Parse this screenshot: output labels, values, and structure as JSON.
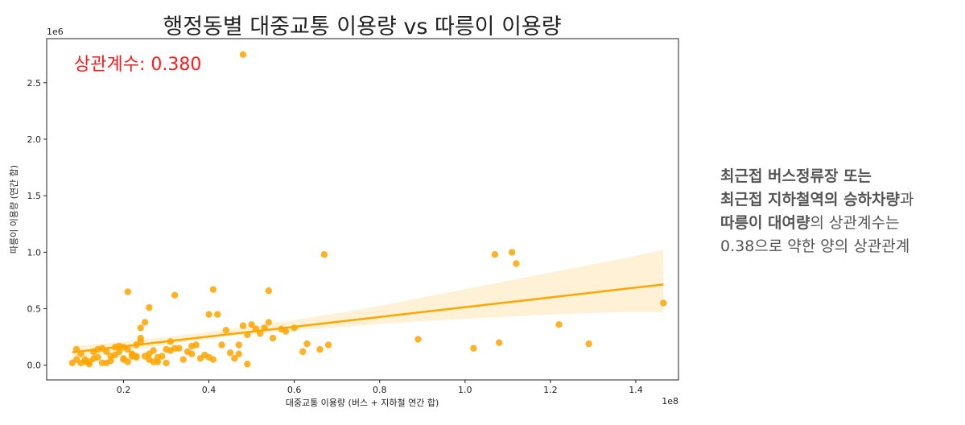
{
  "chart_data": {
    "type": "scatter",
    "title": "행정동별 대중교통 이용량 vs 따릉이 이용량",
    "xlabel": "대중교통 이용량 (버스 + 지하철 연간 합)",
    "ylabel": "따릉이 이용량 (연간 합)",
    "x_offset_label": "1e8",
    "y_offset_label": "1e6",
    "xlim": [
      0.02,
      1.5
    ],
    "ylim": [
      -0.13,
      2.89
    ],
    "xticks": [
      0.2,
      0.4,
      0.6,
      0.8,
      1.0,
      1.2,
      1.4
    ],
    "xtick_labels": [
      "0.2",
      "0.4",
      "0.6",
      "0.8",
      "1.0",
      "1.2",
      "1.4"
    ],
    "yticks": [
      0.0,
      0.5,
      1.0,
      1.5,
      2.0,
      2.5
    ],
    "ytick_labels": [
      "0.0",
      "0.5",
      "1.0",
      "1.5",
      "2.0",
      "2.5"
    ],
    "grid": false,
    "color": "#FFA500",
    "annotation": "상관계수: 0.380",
    "annotation_color": "#FF1A1A",
    "regression": {
      "x": [
        0.08,
        1.465
      ],
      "y": [
        0.115,
        0.715
      ]
    },
    "confidence_band": {
      "x": [
        0.08,
        0.15,
        0.3,
        0.45,
        0.6,
        0.75,
        0.9,
        1.05,
        1.2,
        1.35,
        1.465
      ],
      "lower": [
        0.06,
        0.1,
        0.18,
        0.26,
        0.31,
        0.35,
        0.39,
        0.42,
        0.45,
        0.47,
        0.47
      ],
      "upper": [
        0.17,
        0.19,
        0.25,
        0.32,
        0.4,
        0.49,
        0.6,
        0.71,
        0.82,
        0.93,
        1.02
      ]
    },
    "points": {
      "x": [
        0.48,
        0.21,
        0.41,
        0.32,
        0.54,
        0.67,
        1.07,
        1.11,
        1.12,
        1.08,
        1.02,
        1.22,
        1.29,
        1.465,
        0.89,
        0.1,
        0.11,
        0.13,
        0.15,
        0.17,
        0.19,
        0.2,
        0.21,
        0.22,
        0.23,
        0.24,
        0.25,
        0.26,
        0.28,
        0.3,
        0.31,
        0.33,
        0.35,
        0.36,
        0.38,
        0.4,
        0.42,
        0.43,
        0.44,
        0.46,
        0.47,
        0.48,
        0.49,
        0.5,
        0.52,
        0.53,
        0.55,
        0.57,
        0.58,
        0.6,
        0.62,
        0.63,
        0.66,
        0.68,
        0.09,
        0.08,
        0.12,
        0.14,
        0.16,
        0.18,
        0.2,
        0.22,
        0.24,
        0.26,
        0.27,
        0.29,
        0.31,
        0.34,
        0.37,
        0.39,
        0.41,
        0.45,
        0.47,
        0.49,
        0.51,
        0.54,
        0.23,
        0.25,
        0.27,
        0.22,
        0.19,
        0.17,
        0.15,
        0.13,
        0.11,
        0.1,
        0.09,
        0.12,
        0.14,
        0.16,
        0.18,
        0.2,
        0.21,
        0.23,
        0.24,
        0.26,
        0.28,
        0.3,
        0.32,
        0.36,
        0.4
      ],
      "y": [
        2.75,
        0.65,
        0.67,
        0.62,
        0.66,
        0.98,
        0.98,
        1.0,
        0.9,
        0.2,
        0.15,
        0.36,
        0.19,
        0.55,
        0.23,
        0.1,
        0.05,
        0.12,
        0.15,
        0.08,
        0.17,
        0.05,
        0.14,
        0.1,
        0.18,
        0.33,
        0.08,
        0.51,
        0.07,
        0.14,
        0.21,
        0.15,
        0.12,
        0.17,
        0.06,
        0.45,
        0.45,
        0.18,
        0.31,
        0.06,
        0.18,
        0.35,
        0.27,
        0.36,
        0.28,
        0.33,
        0.24,
        0.32,
        0.3,
        0.33,
        0.12,
        0.19,
        0.14,
        0.18,
        0.14,
        0.02,
        0.03,
        0.07,
        0.12,
        0.16,
        0.06,
        0.09,
        0.21,
        0.1,
        0.03,
        0.08,
        0.13,
        0.05,
        0.18,
        0.09,
        0.05,
        0.11,
        0.1,
        0.01,
        0.32,
        0.38,
        0.08,
        0.38,
        0.13,
        0.08,
        0.12,
        0.04,
        0.02,
        0.06,
        0.03,
        0.02,
        0.05,
        0.01,
        0.14,
        0.02,
        0.09,
        0.16,
        0.03,
        0.07,
        0.24,
        0.05,
        0.03,
        0.02,
        0.15,
        0.1,
        0.07
      ]
    }
  },
  "side_note": {
    "line1_bold": "최근접 버스정류장 또는",
    "line2_bold": "최근접 지하철역의 승하차량",
    "line2_rest": "과",
    "line3_bold": "따릉이 대여량",
    "line3_rest": "의 상관계수는",
    "line4": "0.38으로 약한 양의 상관관계"
  }
}
